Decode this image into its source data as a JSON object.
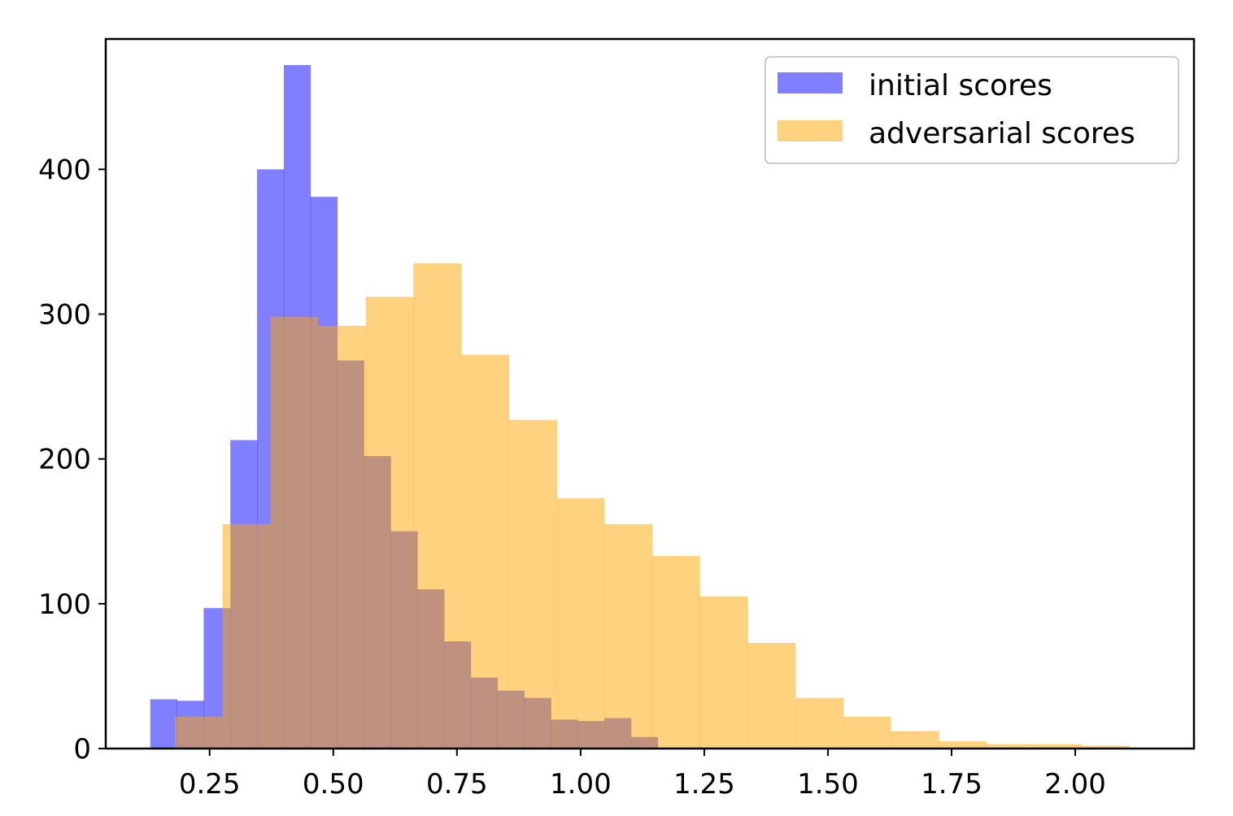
{
  "chart_data": {
    "type": "histogram",
    "title": "",
    "xlabel": "",
    "ylabel": "",
    "xlim": [
      0.04,
      2.24
    ],
    "ylim": [
      0,
      490
    ],
    "x_ticks": [
      0.25,
      0.5,
      0.75,
      1.0,
      1.25,
      1.5,
      1.75,
      2.0
    ],
    "x_tick_labels": [
      "0.25",
      "0.50",
      "0.75",
      "1.00",
      "1.25",
      "1.50",
      "1.75",
      "2.00"
    ],
    "y_ticks": [
      0,
      100,
      200,
      300,
      400
    ],
    "y_tick_labels": [
      "0",
      "100",
      "200",
      "300",
      "400"
    ],
    "grid": false,
    "legend_position": "top-right",
    "series": [
      {
        "name": "initial scores",
        "color": "#0000ff",
        "opacity": 0.5,
        "bin_edges": [
          0.13,
          0.184,
          0.238,
          0.292,
          0.346,
          0.4,
          0.454,
          0.508,
          0.562,
          0.616,
          0.67,
          0.724,
          0.778,
          0.832,
          0.886,
          0.94,
          0.994,
          1.048,
          1.102,
          1.156
        ],
        "counts": [
          34,
          33,
          97,
          213,
          400,
          472,
          381,
          268,
          202,
          150,
          110,
          74,
          49,
          40,
          35,
          20,
          19,
          21,
          8
        ]
      },
      {
        "name": "adversarial scores",
        "color": "#ffa500",
        "opacity": 0.5,
        "bin_edges": [
          0.18,
          0.276,
          0.373,
          0.469,
          0.566,
          0.662,
          0.759,
          0.855,
          0.952,
          1.048,
          1.145,
          1.241,
          1.338,
          1.434,
          1.531,
          1.627,
          1.724,
          1.82,
          1.917,
          2.013,
          2.11
        ],
        "counts": [
          22,
          155,
          298,
          292,
          312,
          335,
          272,
          227,
          173,
          155,
          133,
          105,
          73,
          35,
          22,
          12,
          5,
          3,
          3,
          2
        ]
      }
    ]
  }
}
